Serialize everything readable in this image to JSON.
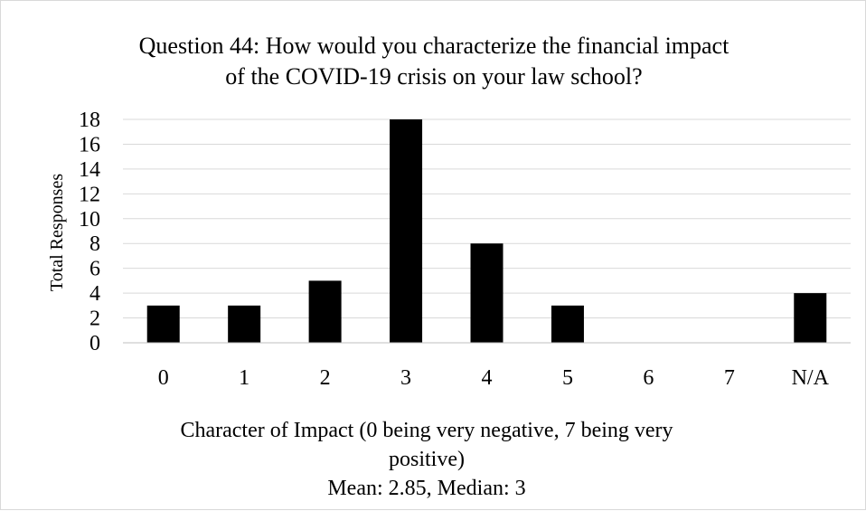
{
  "chart_data": {
    "type": "bar",
    "title_lines": [
      "Question 44: How would you characterize the financial impact",
      "of the COVID-19 crisis on your law school?"
    ],
    "ylabel": "Total Responses",
    "xlabel_lines": [
      "Character of Impact (0 being very negative, 7 being very",
      "positive)",
      "Mean: 2.85, Median: 3"
    ],
    "categories": [
      "0",
      "1",
      "2",
      "3",
      "4",
      "5",
      "6",
      "7",
      "N/A"
    ],
    "values": [
      3,
      3,
      5,
      18,
      8,
      3,
      0,
      0,
      4
    ],
    "ylim": [
      0,
      18
    ],
    "yticks": [
      0,
      2,
      4,
      6,
      8,
      10,
      12,
      14,
      16,
      18
    ],
    "grid": true,
    "legend": "none",
    "colors": {
      "bar": "#000000",
      "grid": "#d9d9d9",
      "axis": "#bfbfbf"
    }
  }
}
